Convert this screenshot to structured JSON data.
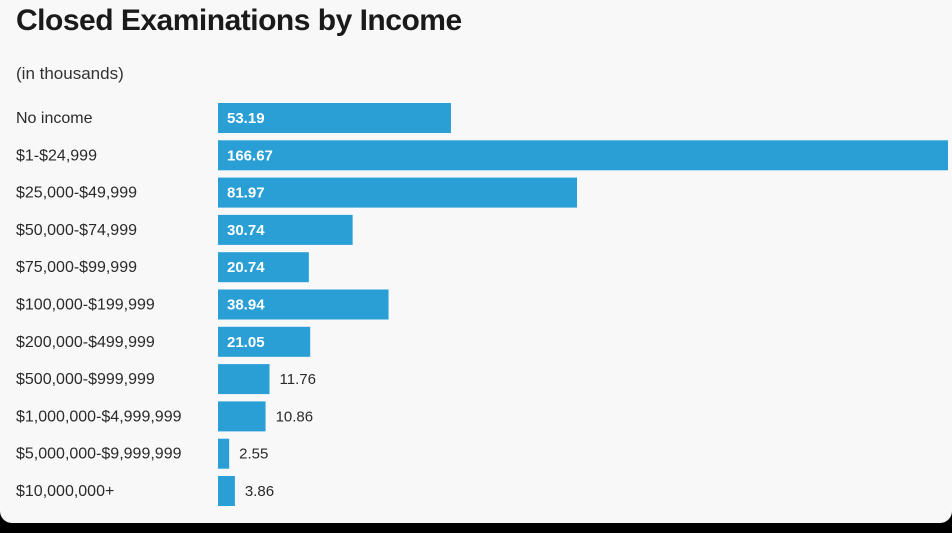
{
  "chart_data": {
    "type": "bar",
    "orientation": "horizontal",
    "title": "Closed Examinations by Income",
    "subtitle": "(in thousands)",
    "xlabel": "",
    "ylabel": "",
    "categories": [
      "No income",
      "$1-$24,999",
      "$25,000-$49,999",
      "$50,000-$74,999",
      "$75,000-$99,999",
      "$100,000-$199,999",
      "$200,000-$499,999",
      "$500,000-$999,999",
      "$1,000,000-$4,999,999",
      "$5,000,000-$9,999,999",
      "$10,000,000+"
    ],
    "values": [
      53.19,
      166.67,
      81.97,
      30.74,
      20.74,
      38.94,
      21.05,
      11.76,
      10.86,
      2.55,
      3.86
    ],
    "value_labels": [
      "53.19",
      "166.67",
      "81.97",
      "30.74",
      "20.74",
      "38.94",
      "21.05",
      "11.76",
      "10.86",
      "2.55",
      "3.86"
    ],
    "xlim": [
      0,
      166.67
    ],
    "grid": false,
    "legend": "none",
    "bar_color": "#2a9fd6",
    "inside_label_color": "#ffffff",
    "outside_label_color": "#2a2a2a"
  }
}
